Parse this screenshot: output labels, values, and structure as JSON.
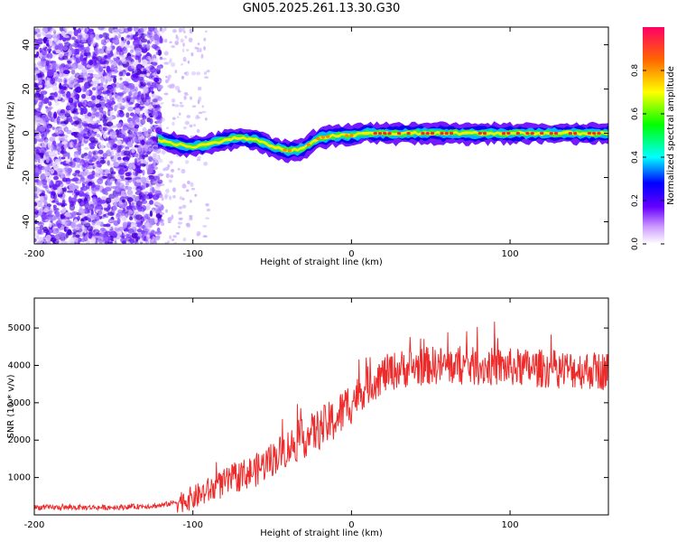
{
  "title": "GN05.2025.261.13.30.G30",
  "chart_data": [
    {
      "type": "heatmap",
      "title": "GN05.2025.261.13.30.G30",
      "xlabel": "Height of straight line (km)",
      "ylabel": "Frequency (Hz)",
      "xlim": [
        -200,
        162
      ],
      "ylim": [
        -50,
        48
      ],
      "xticks": [
        -200,
        -100,
        0,
        100
      ],
      "yticks": [
        -40,
        -20,
        0,
        20,
        40
      ],
      "colorbar": {
        "label": "Normalized spectral amplitude",
        "range": [
          0,
          1
        ],
        "ticks": [
          "0.0",
          "0.2",
          "0.4",
          "0.6",
          "0.8"
        ]
      },
      "ridge_frequency": {
        "x": [
          -122,
          -110,
          -100,
          -90,
          -80,
          -70,
          -60,
          -50,
          -40,
          -30,
          -25,
          -20,
          -10,
          0,
          10,
          20,
          50,
          100,
          162
        ],
        "y": [
          -3,
          -5,
          -6,
          -5,
          -3,
          -2,
          -3,
          -6,
          -8,
          -7,
          -4,
          -2,
          -1,
          -1,
          0,
          0,
          0,
          0,
          0
        ]
      }
    },
    {
      "type": "line",
      "xlabel": "Height of straight line (km)",
      "ylabel": "SNR (10 * v/v)",
      "xlim": [
        -200,
        162
      ],
      "ylim": [
        0,
        5800
      ],
      "xticks": [
        -200,
        -100,
        0,
        100
      ],
      "yticks": [
        1000,
        2000,
        3000,
        4000,
        5000
      ],
      "series": [
        {
          "name": "SNR",
          "color": "#ee2b2b",
          "x": [
            -200,
            -150,
            -120,
            -100,
            -90,
            -80,
            -70,
            -60,
            -50,
            -40,
            -30,
            -20,
            -10,
            0,
            10,
            20,
            30,
            50,
            100,
            162
          ],
          "y": [
            200,
            200,
            250,
            450,
            650,
            850,
            1050,
            1200,
            1500,
            1800,
            2050,
            2300,
            2550,
            3050,
            3450,
            3750,
            3900,
            4000,
            3950,
            3850
          ]
        }
      ]
    }
  ]
}
